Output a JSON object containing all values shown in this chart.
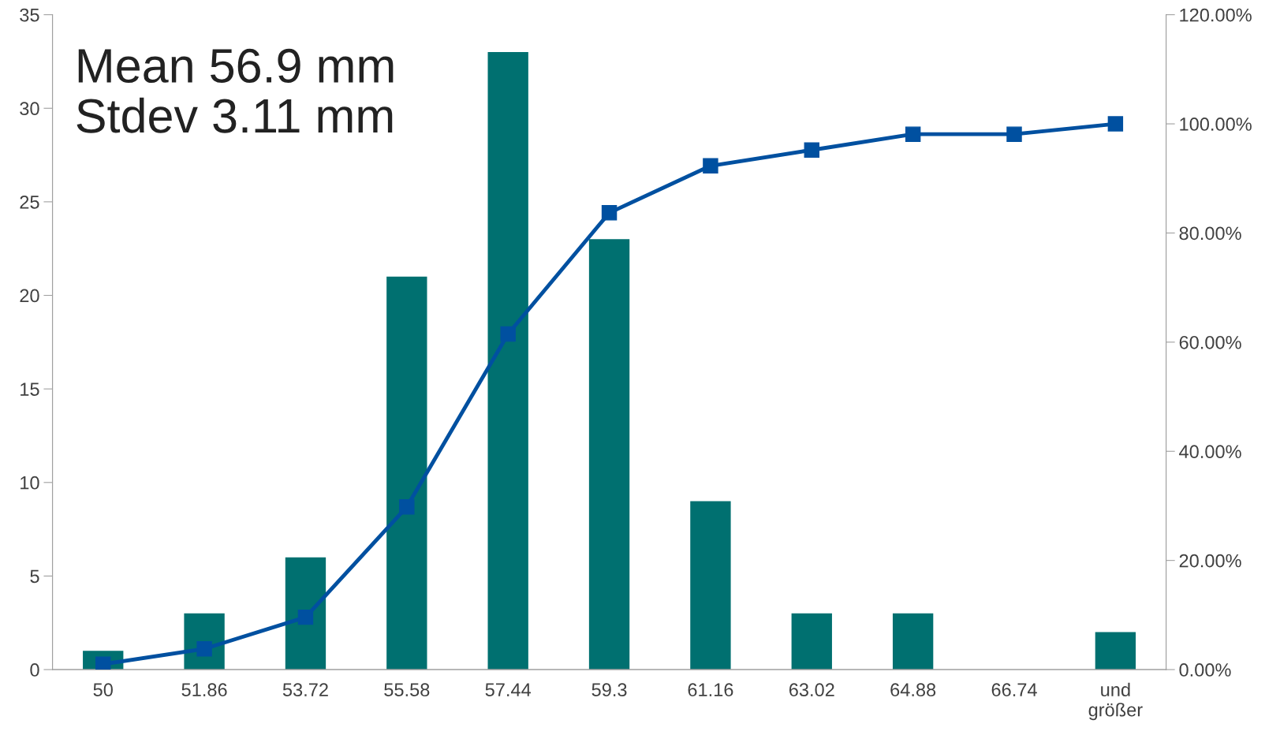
{
  "chart_data": {
    "type": "bar",
    "categories": [
      "50",
      "51.86",
      "53.72",
      "55.58",
      "57.44",
      "59.3",
      "61.16",
      "63.02",
      "64.88",
      "66.74",
      "und\ngrößer"
    ],
    "series": [
      {
        "color": "#007070",
        "values": [
          1,
          3,
          6,
          21,
          33,
          23,
          9,
          3,
          3,
          0,
          2
        ]
      },
      {
        "type": "line",
        "axis": "y2",
        "color": "#0050a0",
        "marker": "square",
        "line_style": "solid",
        "values": [
          1.0,
          3.8,
          9.6,
          29.8,
          61.5,
          83.7,
          92.3,
          95.2,
          98.1,
          98.1,
          100
        ]
      }
    ],
    "ylim": [
      0,
      35
    ],
    "yticks": [
      0,
      5,
      10,
      15,
      20,
      25,
      30,
      35
    ],
    "y2lim": [
      0,
      120
    ],
    "y2ticks": [
      {
        "value": 0,
        "label": "0.00%"
      },
      {
        "value": 20,
        "label": "20.00%"
      },
      {
        "value": 40,
        "label": "40.00%"
      },
      {
        "value": 60,
        "label": "60.00%"
      },
      {
        "value": 80,
        "label": "80.00%"
      },
      {
        "value": 100,
        "label": "100.00%"
      },
      {
        "value": 120,
        "label": "120.00%"
      }
    ],
    "grid": false,
    "legend": false,
    "annotations": [
      "Mean 56.9 mm\nStdev 3.11 mm"
    ]
  }
}
